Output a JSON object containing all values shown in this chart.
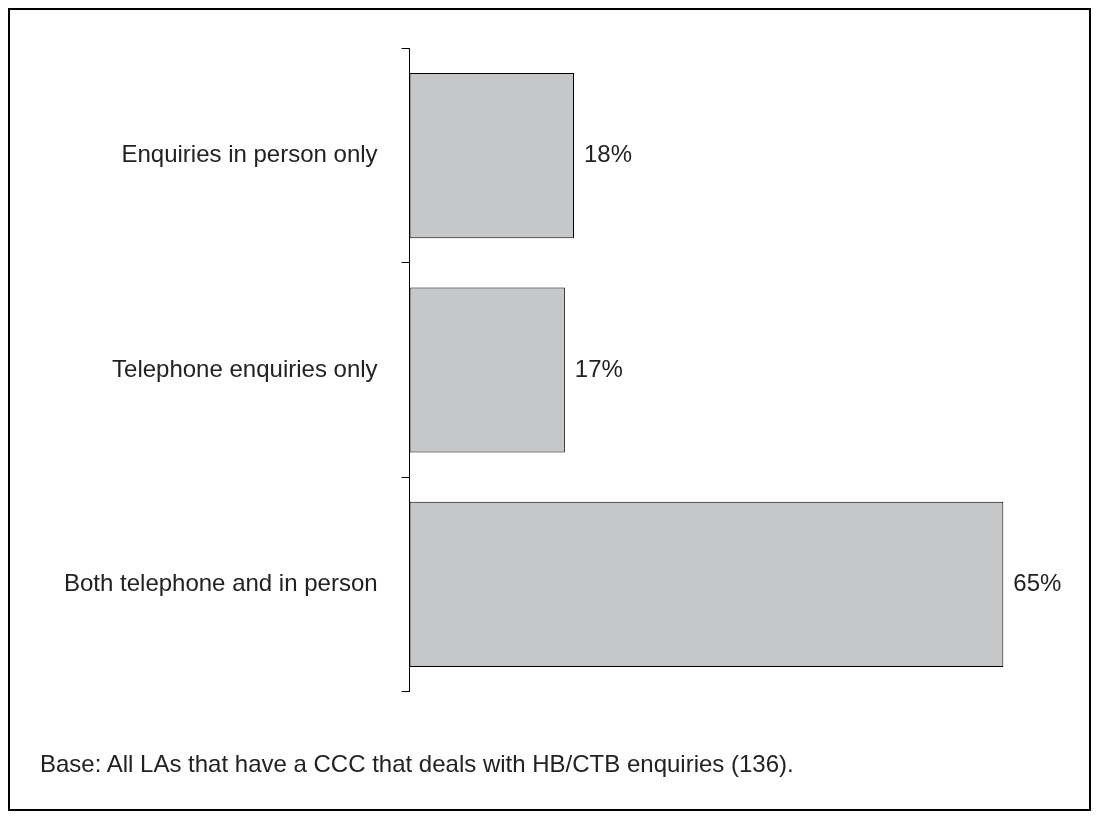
{
  "chart_data": {
    "type": "bar",
    "orientation": "horizontal",
    "categories": [
      "Enquiries in person only",
      "Telephone enquiries only",
      "Both telephone and in person"
    ],
    "values": [
      18,
      17,
      65
    ],
    "value_labels": [
      "18%",
      "17%",
      "65%"
    ],
    "color": "#c6c7c9",
    "grid": false,
    "legend": false,
    "annotations": [
      "Base: All LAs that have a CCC that deals with HB/CTB enquiries (136)."
    ]
  }
}
